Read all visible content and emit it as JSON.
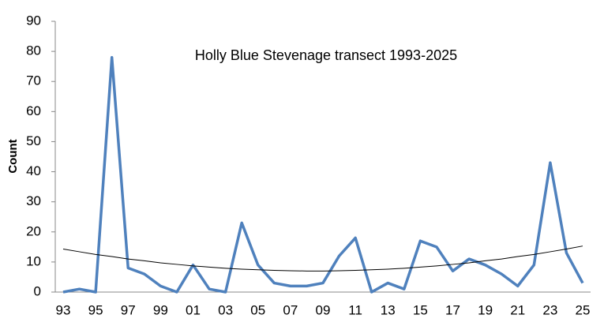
{
  "chart_data": {
    "type": "line",
    "title": "Holly Blue Stevenage transect 1993-2025",
    "y_label": "Count",
    "categories": [
      "93",
      null,
      "95",
      null,
      "97",
      null,
      "99",
      null,
      "01",
      null,
      "03",
      null,
      "05",
      null,
      "07",
      null,
      "09",
      null,
      "11",
      null,
      "13",
      null,
      "15",
      null,
      "17",
      null,
      "19",
      null,
      "21",
      null,
      "23",
      null,
      "25"
    ],
    "series": [
      {
        "color": "#4f81bd",
        "values": [
          0,
          1,
          0,
          78,
          8,
          6,
          2,
          0,
          9,
          1,
          0,
          23,
          9,
          3,
          2,
          2,
          3,
          12,
          18,
          0,
          3,
          1,
          17,
          15,
          7,
          11,
          9,
          6,
          2,
          9,
          43,
          13,
          3
        ]
      },
      {
        "color": "#000000",
        "values": [
          14.3,
          13.4,
          12.5,
          11.8,
          11.0,
          10.4,
          9.7,
          9.2,
          8.7,
          8.3,
          7.9,
          7.6,
          7.4,
          7.2,
          7.1,
          7.0,
          7.0,
          7.1,
          7.2,
          7.4,
          7.6,
          7.9,
          8.3,
          8.7,
          9.2,
          9.7,
          10.4,
          11.0,
          11.8,
          12.5,
          13.4,
          14.3,
          15.3
        ]
      }
    ],
    "ylim": [
      0,
      90
    ],
    "yticks": [
      0,
      10,
      20,
      30,
      40,
      50,
      60,
      70,
      80,
      90
    ],
    "grid": false
  }
}
